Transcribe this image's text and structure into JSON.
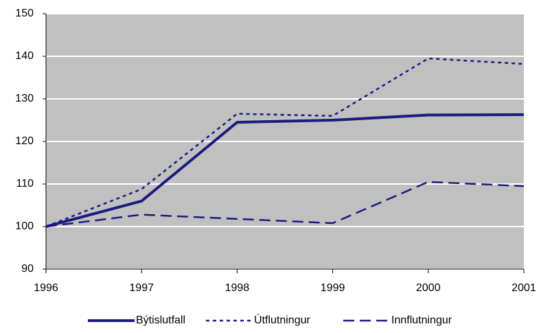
{
  "chart_data": {
    "type": "line",
    "x": [
      1996,
      1997,
      1998,
      1999,
      2000,
      2001
    ],
    "xlim": [
      1996,
      2001
    ],
    "xticks": [
      1996,
      1997,
      1998,
      1999,
      2000,
      2001
    ],
    "ylim": [
      90,
      150
    ],
    "yticks": [
      90,
      100,
      110,
      120,
      130,
      140,
      150
    ],
    "grid": true,
    "legend": "bottom",
    "series": [
      {
        "name": "Býtislutfall",
        "color": "#1a1a80",
        "style": "solid",
        "values": [
          100,
          106,
          124.5,
          125,
          126.2,
          126.3
        ]
      },
      {
        "name": "Útflutningur",
        "color": "#1a1a80",
        "style": "dotted",
        "values": [
          100,
          108.8,
          126.5,
          126,
          139.5,
          138.2
        ]
      },
      {
        "name": "Innflutningur",
        "color": "#1a1a80",
        "style": "dashed",
        "values": [
          100,
          102.8,
          101.8,
          100.8,
          110.5,
          109.5
        ]
      }
    ]
  }
}
